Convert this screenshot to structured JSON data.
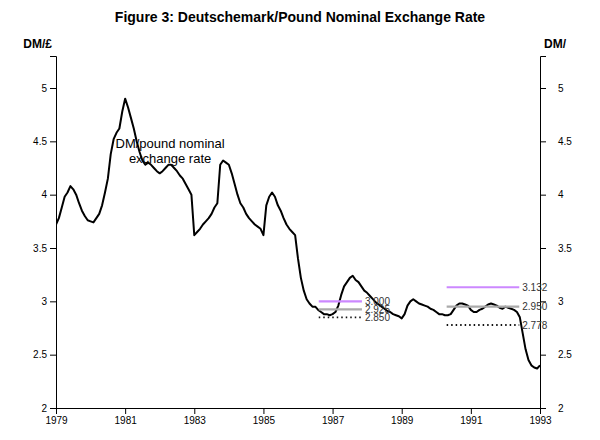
{
  "chart_data": {
    "type": "line",
    "title": "Figure 3: Deutschemark/Pound Nominal Exchange Rate",
    "y_label": "DM/£",
    "y2_label": "DM/",
    "color": "#000000",
    "xlim": [
      1979,
      1993
    ],
    "xticks": [
      1979,
      1981,
      1983,
      1985,
      1987,
      1989,
      1991,
      1993
    ],
    "ylim": [
      2.0,
      5.3
    ],
    "yticks": [
      2,
      2.5,
      3,
      3.5,
      4,
      4.5,
      5
    ],
    "y2lim": [
      2.0,
      5.3
    ],
    "y2ticks": [
      2,
      2.5,
      3,
      3.5,
      4,
      4.5,
      5
    ],
    "grid": false,
    "annotations": [
      {
        "text": "DM/pound nominal\nexchange rate",
        "x": 1982.3,
        "y": 4.55
      }
    ],
    "reference_lines": [
      {
        "y": 3.0,
        "x_start": 1986.6,
        "x_end": 1987.85,
        "color": "#cc88ff",
        "label": "3.000",
        "line_style": "solid"
      },
      {
        "y": 2.925,
        "x_start": 1986.6,
        "x_end": 1987.85,
        "color": "#aaaaaa",
        "label": "2.925",
        "line_style": "solid"
      },
      {
        "y": 2.85,
        "x_start": 1986.6,
        "x_end": 1987.85,
        "color": "#111111",
        "label": "2.850",
        "line_style": "dotted"
      },
      {
        "y": 3.132,
        "x_start": 1990.3,
        "x_end": 1992.4,
        "color": "#cc88ff",
        "label": "3.132",
        "line_style": "solid"
      },
      {
        "y": 2.95,
        "x_start": 1990.3,
        "x_end": 1992.4,
        "color": "#aaaaaa",
        "label": "2.950",
        "line_style": "solid"
      },
      {
        "y": 2.778,
        "x_start": 1990.3,
        "x_end": 1992.4,
        "color": "#111111",
        "label": "2.778",
        "line_style": "dotted"
      }
    ],
    "x": [
      1979.0,
      1979.083,
      1979.167,
      1979.25,
      1979.333,
      1979.417,
      1979.5,
      1979.583,
      1979.667,
      1979.75,
      1979.833,
      1979.917,
      1980.0,
      1980.083,
      1980.167,
      1980.25,
      1980.333,
      1980.417,
      1980.5,
      1980.583,
      1980.667,
      1980.75,
      1980.833,
      1980.917,
      1981.0,
      1981.083,
      1981.167,
      1981.25,
      1981.333,
      1981.417,
      1981.5,
      1981.583,
      1981.667,
      1981.75,
      1981.833,
      1981.917,
      1982.0,
      1982.083,
      1982.167,
      1982.25,
      1982.333,
      1982.417,
      1982.5,
      1982.583,
      1982.667,
      1982.75,
      1982.833,
      1982.917,
      1983.0,
      1983.083,
      1983.167,
      1983.25,
      1983.333,
      1983.417,
      1983.5,
      1983.583,
      1983.667,
      1983.75,
      1983.833,
      1983.917,
      1984.0,
      1984.083,
      1984.167,
      1984.25,
      1984.333,
      1984.417,
      1984.5,
      1984.583,
      1984.667,
      1984.75,
      1984.833,
      1984.917,
      1985.0,
      1985.083,
      1985.167,
      1985.25,
      1985.333,
      1985.417,
      1985.5,
      1985.583,
      1985.667,
      1985.75,
      1985.833,
      1985.917,
      1986.0,
      1986.083,
      1986.167,
      1986.25,
      1986.333,
      1986.417,
      1986.5,
      1986.583,
      1986.667,
      1986.75,
      1986.833,
      1986.917,
      1987.0,
      1987.083,
      1987.167,
      1987.25,
      1987.333,
      1987.417,
      1987.5,
      1987.583,
      1987.667,
      1987.75,
      1987.833,
      1987.917,
      1988.0,
      1988.083,
      1988.167,
      1988.25,
      1988.333,
      1988.417,
      1988.5,
      1988.583,
      1988.667,
      1988.75,
      1988.833,
      1988.917,
      1989.0,
      1989.083,
      1989.167,
      1989.25,
      1989.333,
      1989.417,
      1989.5,
      1989.583,
      1989.667,
      1989.75,
      1989.833,
      1989.917,
      1990.0,
      1990.083,
      1990.167,
      1990.25,
      1990.333,
      1990.417,
      1990.5,
      1990.583,
      1990.667,
      1990.75,
      1990.833,
      1990.917,
      1991.0,
      1991.083,
      1991.167,
      1991.25,
      1991.333,
      1991.417,
      1991.5,
      1991.583,
      1991.667,
      1991.75,
      1991.833,
      1991.917,
      1992.0,
      1992.083,
      1992.167,
      1992.25,
      1992.333,
      1992.417,
      1992.5,
      1992.583,
      1992.667,
      1992.75,
      1992.833,
      1992.917,
      1993.0
    ],
    "values": [
      3.72,
      3.78,
      3.88,
      3.98,
      4.02,
      4.08,
      4.05,
      4.0,
      3.92,
      3.85,
      3.8,
      3.76,
      3.75,
      3.74,
      3.78,
      3.82,
      3.9,
      4.02,
      4.15,
      4.38,
      4.52,
      4.58,
      4.62,
      4.78,
      4.9,
      4.82,
      4.72,
      4.62,
      4.5,
      4.4,
      4.32,
      4.28,
      4.3,
      4.28,
      4.25,
      4.22,
      4.2,
      4.22,
      4.25,
      4.28,
      4.28,
      4.25,
      4.22,
      4.18,
      4.15,
      4.1,
      4.05,
      4.0,
      3.62,
      3.65,
      3.68,
      3.72,
      3.75,
      3.78,
      3.82,
      3.88,
      3.92,
      4.28,
      4.32,
      4.3,
      4.28,
      4.2,
      4.1,
      4.0,
      3.92,
      3.88,
      3.82,
      3.78,
      3.75,
      3.72,
      3.7,
      3.68,
      3.62,
      3.9,
      3.98,
      4.02,
      3.98,
      3.9,
      3.85,
      3.78,
      3.72,
      3.68,
      3.65,
      3.62,
      3.4,
      3.22,
      3.1,
      3.02,
      2.98,
      2.95,
      2.95,
      2.92,
      2.9,
      2.88,
      2.88,
      2.87,
      2.88,
      2.9,
      2.96,
      3.06,
      3.14,
      3.18,
      3.22,
      3.24,
      3.2,
      3.18,
      3.14,
      3.1,
      3.08,
      3.05,
      3.02,
      2.99,
      2.97,
      2.95,
      2.93,
      2.91,
      2.9,
      2.88,
      2.87,
      2.86,
      2.84,
      2.88,
      2.96,
      3.0,
      3.02,
      3.0,
      2.98,
      2.97,
      2.96,
      2.95,
      2.93,
      2.92,
      2.9,
      2.88,
      2.88,
      2.87,
      2.87,
      2.88,
      2.92,
      2.96,
      2.98,
      2.98,
      2.97,
      2.96,
      2.92,
      2.9,
      2.9,
      2.92,
      2.93,
      2.95,
      2.97,
      2.98,
      2.97,
      2.96,
      2.94,
      2.93,
      2.95,
      2.94,
      2.93,
      2.92,
      2.9,
      2.85,
      2.7,
      2.55,
      2.45,
      2.4,
      2.38,
      2.37,
      2.4
    ]
  }
}
